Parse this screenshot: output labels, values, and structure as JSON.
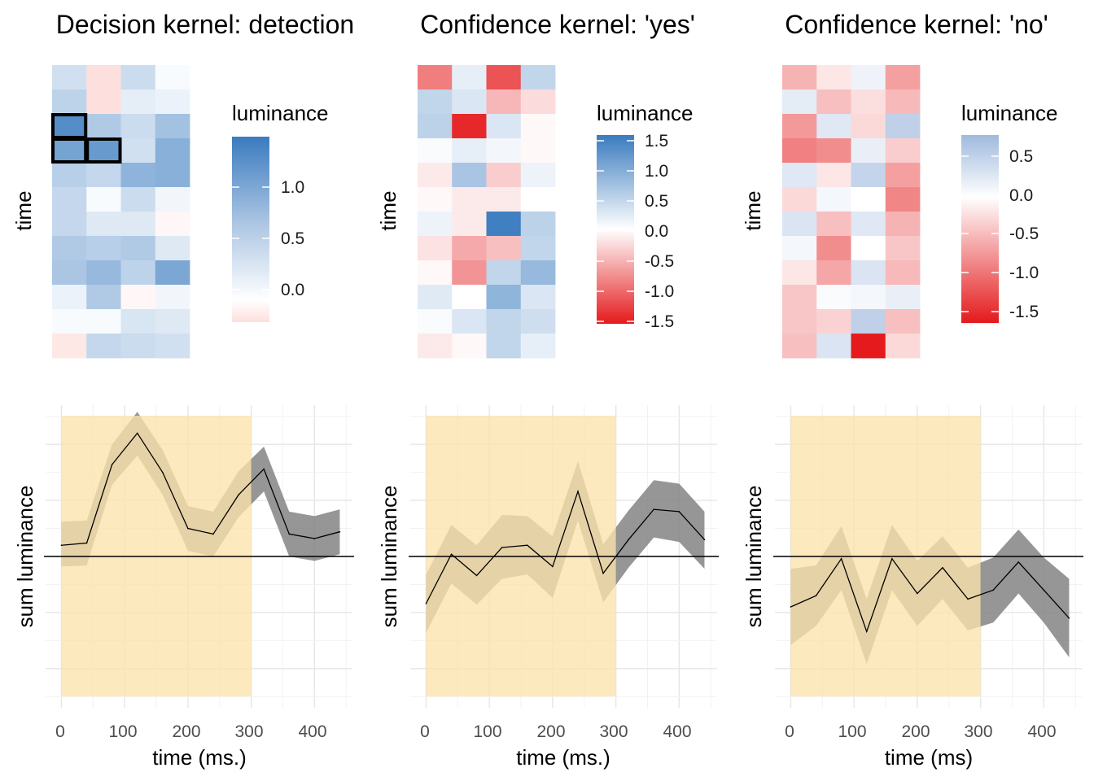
{
  "figure": {
    "panels": [
      {
        "title": "Decision kernel: detection",
        "heatmap_ylabel": "time",
        "legend_title": "luminance",
        "legend_ticks": [
          "1.0",
          "0.5",
          "0.0"
        ],
        "line_ylabel": "sum luminance",
        "line_xlabel": "time (ms.)"
      },
      {
        "title": "Confidence kernel: 'yes'",
        "heatmap_ylabel": "time",
        "legend_title": "luminance",
        "legend_ticks": [
          "1.5",
          "1.0",
          "0.5",
          "0.0",
          "-0.5",
          "-1.0",
          "-1.5"
        ],
        "line_ylabel": "sum luminance",
        "line_xlabel": "time (ms.)"
      },
      {
        "title": "Confidence kernel: 'no'",
        "heatmap_ylabel": "time",
        "legend_title": "luminance",
        "legend_ticks": [
          "0.5",
          "0.0",
          "-0.5",
          "-1.0",
          "-1.5"
        ],
        "line_ylabel": "sum luminance",
        "line_xlabel": "time (ms)"
      }
    ],
    "x_tick_labels": [
      "0",
      "100",
      "200",
      "300",
      "400"
    ]
  },
  "chart_data": [
    {
      "type": "heatmap",
      "title": "Decision kernel: detection",
      "ylabel": "time",
      "legend_title": "luminance",
      "color_range": [
        -0.2,
        1.5
      ],
      "colors": {
        "low": "#fde0dd",
        "mid": "#ffffff",
        "high": "#3a7bbf"
      },
      "rows": 12,
      "cols": 4,
      "values": [
        [
          0.35,
          -0.2,
          0.4,
          0.05
        ],
        [
          0.5,
          -0.2,
          0.2,
          0.15
        ],
        [
          1.3,
          0.6,
          0.4,
          0.7
        ],
        [
          1.05,
          1.15,
          0.35,
          0.9
        ],
        [
          0.55,
          0.45,
          0.85,
          0.9
        ],
        [
          0.45,
          0.05,
          0.4,
          0.1
        ],
        [
          0.45,
          0.25,
          0.25,
          -0.05
        ],
        [
          0.6,
          0.55,
          0.6,
          0.25
        ],
        [
          0.65,
          0.8,
          0.5,
          1.0
        ],
        [
          0.15,
          0.6,
          -0.05,
          0.1
        ],
        [
          0.05,
          0.05,
          0.3,
          0.25
        ],
        [
          -0.15,
          0.45,
          0.4,
          0.35
        ]
      ],
      "highlighted_cells": [
        [
          2,
          0
        ],
        [
          3,
          0
        ],
        [
          3,
          1
        ]
      ]
    },
    {
      "type": "heatmap",
      "title": "Confidence kernel: 'yes'",
      "ylabel": "time",
      "legend_title": "luminance",
      "color_range": [
        -1.6,
        1.6
      ],
      "colors": {
        "low": "#e41a1c",
        "mid": "#ffffff",
        "high": "#3a7bbf"
      },
      "rows": 12,
      "cols": 4,
      "values": [
        [
          -0.9,
          0.2,
          -1.2,
          0.5
        ],
        [
          0.5,
          0.3,
          -0.5,
          -0.25
        ],
        [
          0.55,
          -1.5,
          0.3,
          -0.05
        ],
        [
          0.05,
          0.2,
          0.1,
          -0.05
        ],
        [
          -0.15,
          0.7,
          -0.35,
          0.15
        ],
        [
          -0.05,
          -0.15,
          -0.15,
          0.0
        ],
        [
          0.15,
          -0.15,
          1.55,
          0.55
        ],
        [
          -0.2,
          -0.6,
          -0.45,
          0.5
        ],
        [
          -0.05,
          -0.75,
          0.5,
          0.85
        ],
        [
          0.25,
          0.0,
          0.9,
          0.3
        ],
        [
          0.05,
          0.3,
          0.5,
          0.4
        ],
        [
          -0.15,
          -0.05,
          0.5,
          0.2
        ]
      ]
    },
    {
      "type": "heatmap",
      "title": "Confidence kernel: 'no'",
      "ylabel": "time",
      "legend_title": "luminance",
      "color_range": [
        -1.8,
        0.9
      ],
      "colors": {
        "low": "#e41a1c",
        "mid": "#ffffff",
        "high": "#9fb9dd"
      },
      "rows": 12,
      "cols": 4,
      "values": [
        [
          -0.6,
          -0.2,
          0.15,
          -0.75
        ],
        [
          0.25,
          -0.5,
          -0.25,
          -0.55
        ],
        [
          -0.8,
          0.3,
          -0.3,
          0.6
        ],
        [
          -1.0,
          -0.9,
          0.2,
          -0.4
        ],
        [
          0.3,
          -0.2,
          0.55,
          -0.75
        ],
        [
          -0.3,
          0.1,
          0.0,
          -0.95
        ],
        [
          0.35,
          -0.5,
          0.3,
          -0.6
        ],
        [
          0.1,
          -0.9,
          0.0,
          -0.45
        ],
        [
          -0.2,
          -0.7,
          0.35,
          -0.55
        ],
        [
          -0.45,
          0.05,
          0.1,
          0.2
        ],
        [
          -0.45,
          -0.35,
          0.6,
          -0.5
        ],
        [
          -0.5,
          0.35,
          -1.8,
          -0.3
        ]
      ]
    },
    {
      "type": "line",
      "xlabel": "time (ms.)",
      "ylabel": "sum luminance",
      "xlim": [
        -25,
        460
      ],
      "x_ticks": [
        0,
        100,
        200,
        300,
        400
      ],
      "ylim": [
        -1.35,
        1.35
      ],
      "hline": 0,
      "shaded_region": {
        "xmin": 0,
        "xmax": 300,
        "color": "#fce3ac"
      },
      "series": [
        {
          "x": [
            0,
            40,
            80,
            120,
            160,
            200,
            240,
            280,
            320,
            360,
            400,
            440
          ],
          "y": [
            0.1,
            0.12,
            0.82,
            1.1,
            0.75,
            0.25,
            0.2,
            0.55,
            0.78,
            0.2,
            0.16,
            0.22
          ],
          "lower": [
            -0.09,
            -0.08,
            0.64,
            0.9,
            0.55,
            0.05,
            0.0,
            0.35,
            0.58,
            0.0,
            -0.04,
            0.02
          ],
          "upper": [
            0.31,
            0.32,
            1.0,
            1.29,
            0.95,
            0.45,
            0.4,
            0.76,
            0.98,
            0.4,
            0.36,
            0.42
          ]
        }
      ]
    },
    {
      "type": "line",
      "xlabel": "time (ms.)",
      "ylabel": "sum luminance",
      "xlim": [
        -25,
        460
      ],
      "x_ticks": [
        0,
        100,
        200,
        300,
        400
      ],
      "ylim": [
        -1.35,
        1.35
      ],
      "hline": 0,
      "shaded_region": {
        "xmin": 0,
        "xmax": 300,
        "color": "#fce3ac"
      },
      "series": [
        {
          "x": [
            0,
            40,
            80,
            120,
            160,
            200,
            240,
            280,
            320,
            360,
            400,
            440
          ],
          "y": [
            -0.42,
            0.02,
            -0.17,
            0.08,
            0.1,
            -0.09,
            0.58,
            -0.15,
            0.15,
            0.42,
            0.4,
            0.15
          ],
          "lower": [
            -0.68,
            -0.24,
            -0.43,
            -0.2,
            -0.16,
            -0.37,
            0.32,
            -0.41,
            -0.1,
            0.17,
            0.13,
            -0.11
          ],
          "upper": [
            -0.16,
            0.28,
            0.1,
            0.37,
            0.36,
            0.18,
            0.85,
            0.11,
            0.41,
            0.68,
            0.65,
            0.4
          ]
        }
      ]
    },
    {
      "type": "line",
      "xlabel": "time (ms)",
      "ylabel": "sum luminance",
      "xlim": [
        -25,
        460
      ],
      "x_ticks": [
        0,
        100,
        200,
        300,
        400
      ],
      "ylim": [
        -1.35,
        1.35
      ],
      "hline": 0,
      "shaded_region": {
        "xmin": 0,
        "xmax": 300,
        "color": "#fce3ac"
      },
      "series": [
        {
          "x": [
            0,
            40,
            80,
            120,
            160,
            200,
            240,
            280,
            320,
            360,
            400,
            440
          ],
          "y": [
            -0.45,
            -0.35,
            -0.02,
            -0.67,
            -0.02,
            -0.33,
            -0.1,
            -0.38,
            -0.3,
            -0.05,
            -0.3,
            -0.55
          ],
          "lower": [
            -0.79,
            -0.62,
            -0.3,
            -0.96,
            -0.3,
            -0.62,
            -0.38,
            -0.66,
            -0.59,
            -0.33,
            -0.59,
            -0.9
          ],
          "upper": [
            -0.11,
            -0.08,
            0.27,
            -0.38,
            0.28,
            -0.04,
            0.18,
            -0.1,
            -0.01,
            0.24,
            -0.01,
            -0.2
          ]
        }
      ]
    }
  ]
}
